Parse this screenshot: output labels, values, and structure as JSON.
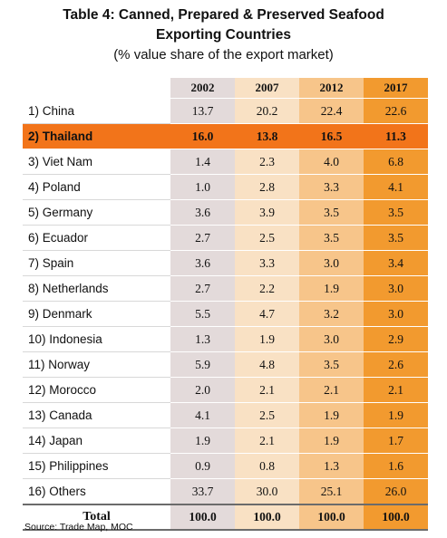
{
  "title_line1": "Table 4: Canned, Prepared & Preserved Seafood",
  "title_line2": "Exporting Countries",
  "subtitle": "(% value share of the export market)",
  "years": [
    "2002",
    "2007",
    "2012",
    "2017"
  ],
  "rows": [
    {
      "name": "1) China",
      "values": [
        "13.7",
        "20.2",
        "22.4",
        "22.6"
      ],
      "highlight": false
    },
    {
      "name": "2) Thailand",
      "values": [
        "16.0",
        "13.8",
        "16.5",
        "11.3"
      ],
      "highlight": true
    },
    {
      "name": "3) Viet Nam",
      "values": [
        "1.4",
        "2.3",
        "4.0",
        "6.8"
      ],
      "highlight": false
    },
    {
      "name": "4) Poland",
      "values": [
        "1.0",
        "2.8",
        "3.3",
        "4.1"
      ],
      "highlight": false
    },
    {
      "name": "5) Germany",
      "values": [
        "3.6",
        "3.9",
        "3.5",
        "3.5"
      ],
      "highlight": false
    },
    {
      "name": "6) Ecuador",
      "values": [
        "2.7",
        "2.5",
        "3.5",
        "3.5"
      ],
      "highlight": false
    },
    {
      "name": "7) Spain",
      "values": [
        "3.6",
        "3.3",
        "3.0",
        "3.4"
      ],
      "highlight": false
    },
    {
      "name": "8) Netherlands",
      "values": [
        "2.7",
        "2.2",
        "1.9",
        "3.0"
      ],
      "highlight": false
    },
    {
      "name": "9) Denmark",
      "values": [
        "5.5",
        "4.7",
        "3.2",
        "3.0"
      ],
      "highlight": false
    },
    {
      "name": "10) Indonesia",
      "values": [
        "1.3",
        "1.9",
        "3.0",
        "2.9"
      ],
      "highlight": false
    },
    {
      "name": "11) Norway",
      "values": [
        "5.9",
        "4.8",
        "3.5",
        "2.6"
      ],
      "highlight": false
    },
    {
      "name": "12) Morocco",
      "values": [
        "2.0",
        "2.1",
        "2.1",
        "2.1"
      ],
      "highlight": false
    },
    {
      "name": "13) Canada",
      "values": [
        "4.1",
        "2.5",
        "1.9",
        "1.9"
      ],
      "highlight": false
    },
    {
      "name": "14) Japan",
      "values": [
        "1.9",
        "2.1",
        "1.9",
        "1.7"
      ],
      "highlight": false
    },
    {
      "name": "15) Philippines",
      "values": [
        "0.9",
        "0.8",
        "1.3",
        "1.6"
      ],
      "highlight": false
    },
    {
      "name": "16) Others",
      "values": [
        "33.7",
        "30.0",
        "25.1",
        "26.0"
      ],
      "highlight": false
    }
  ],
  "total": {
    "label": "Total",
    "values": [
      "100.0",
      "100.0",
      "100.0",
      "100.0"
    ]
  },
  "source": "Source: Trade Map, MOC",
  "colors": {
    "col_2002": "#e3dada",
    "col_2007": "#f9e1c4",
    "col_2012": "#f7c58a",
    "col_2017": "#f29a2f",
    "highlight_row": "#f2741a"
  }
}
